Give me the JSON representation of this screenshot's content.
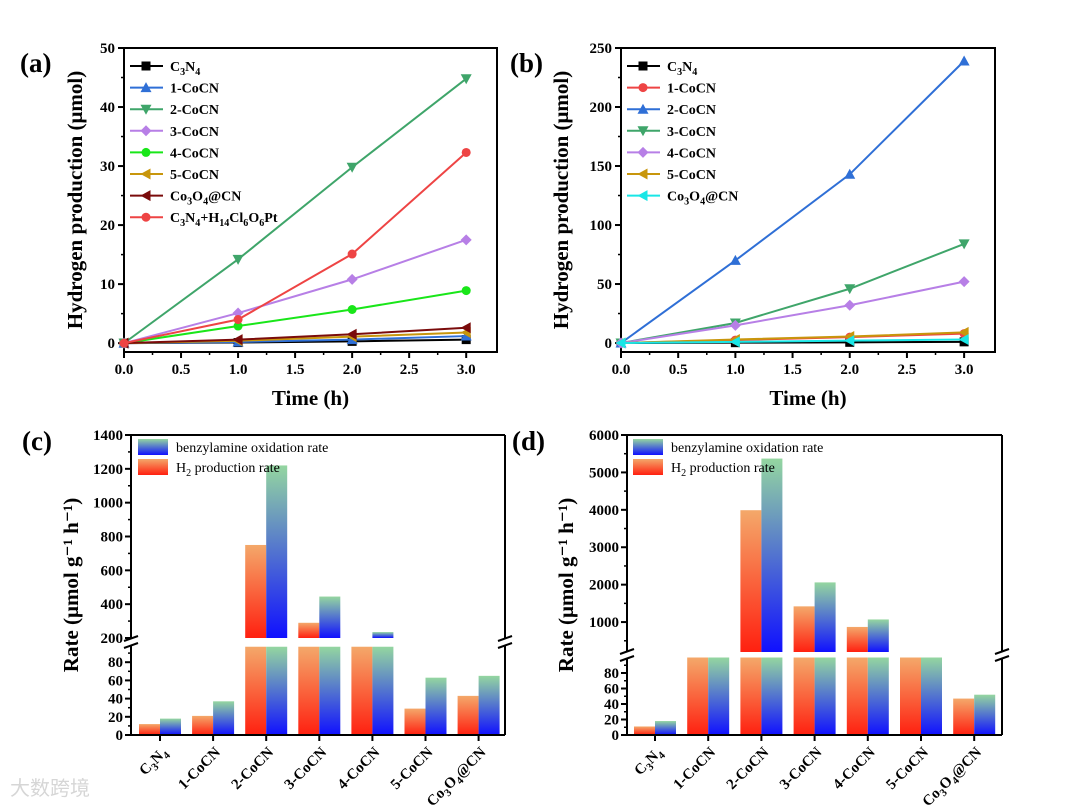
{
  "watermark": "大数跨境",
  "chart_data": [
    {
      "panel": "(a)",
      "type": "line",
      "xlabel": "Time (h)",
      "ylabel": "Hydrogen production (μmol)",
      "xlim": [
        0,
        3.27
      ],
      "ylim": [
        -1.5,
        50
      ],
      "xticks": [
        "0.0",
        "0.5",
        "1.0",
        "1.5",
        "2.0",
        "2.5",
        "3.0"
      ],
      "yticks": [
        "0",
        "10",
        "20",
        "30",
        "40",
        "50"
      ],
      "legend": "top-left",
      "x": [
        0,
        1,
        2,
        3
      ],
      "series": [
        {
          "name": "C3N4",
          "color": "#000000",
          "marker": "square",
          "values": [
            0,
            0.1,
            0.3,
            0.6
          ]
        },
        {
          "name": "1-CoCN",
          "color": "#2f6fd6",
          "marker": "triangle-up",
          "values": [
            0,
            0.2,
            0.6,
            1.2
          ]
        },
        {
          "name": "2-CoCN",
          "color": "#3fa56a",
          "marker": "triangle-down",
          "values": [
            0,
            14.2,
            29.8,
            44.8
          ]
        },
        {
          "name": "3-CoCN",
          "color": "#b77fe6",
          "marker": "diamond",
          "values": [
            0,
            5.1,
            10.8,
            17.5
          ]
        },
        {
          "name": "4-CoCN",
          "color": "#19e619",
          "marker": "circle",
          "values": [
            0,
            2.9,
            5.7,
            8.9
          ]
        },
        {
          "name": "5-CoCN",
          "color": "#c8960c",
          "marker": "triangle-left",
          "values": [
            0,
            0.4,
            1.1,
            1.8
          ]
        },
        {
          "name": "Co3O4@CN",
          "color": "#7a0b0b",
          "marker": "triangle-left",
          "values": [
            0,
            0.6,
            1.5,
            2.6
          ]
        },
        {
          "name": "C3N4+H14Cl6O6Pt",
          "color": "#ee4444",
          "marker": "circle",
          "values": [
            0,
            4.0,
            15.1,
            32.3
          ]
        }
      ]
    },
    {
      "panel": "(b)",
      "type": "line",
      "xlabel": "Time (h)",
      "ylabel": "Hydrogen production (μmol)",
      "xlim": [
        0,
        3.27
      ],
      "ylim": [
        -7.6,
        250
      ],
      "xticks": [
        "0.0",
        "0.5",
        "1.0",
        "1.5",
        "2.0",
        "2.5",
        "3.0"
      ],
      "yticks": [
        "0",
        "50",
        "100",
        "150",
        "200",
        "250"
      ],
      "legend": "top-left",
      "x": [
        0,
        1,
        2,
        3
      ],
      "series": [
        {
          "name": "C3N4",
          "color": "#000000",
          "marker": "square",
          "values": [
            0,
            0.3,
            0.6,
            1.0
          ]
        },
        {
          "name": "1-CoCN",
          "color": "#ee4444",
          "marker": "circle",
          "values": [
            0,
            2.5,
            5.0,
            8.0
          ]
        },
        {
          "name": "2-CoCN",
          "color": "#2f6fd6",
          "marker": "triangle-up",
          "values": [
            0,
            70,
            143,
            239
          ]
        },
        {
          "name": "3-CoCN",
          "color": "#3fa56a",
          "marker": "triangle-down",
          "values": [
            0,
            17,
            46,
            84
          ]
        },
        {
          "name": "4-CoCN",
          "color": "#b77fe6",
          "marker": "diamond",
          "values": [
            0,
            15,
            32,
            52
          ]
        },
        {
          "name": "5-CoCN",
          "color": "#c8960c",
          "marker": "triangle-left",
          "values": [
            0,
            3,
            5.5,
            9
          ]
        },
        {
          "name": "Co3O4@CN",
          "color": "#19e6e6",
          "marker": "triangle-left",
          "values": [
            0,
            1,
            2,
            3
          ]
        }
      ]
    },
    {
      "panel": "(c)",
      "type": "bar",
      "ylabel": "Rate (μmol g⁻¹ h⁻¹)",
      "y_broken": true,
      "ylim_lower": [
        0,
        97
      ],
      "ylim_upper": [
        200,
        1400
      ],
      "yticks_lower": [
        "0",
        "20",
        "40",
        "60",
        "80"
      ],
      "yticks_upper": [
        "200",
        "400",
        "600",
        "800",
        "1000",
        "1200",
        "1400"
      ],
      "legend": "top-left",
      "categories": [
        "C3N4",
        "1-CoCN",
        "2-CoCN",
        "3-CoCN",
        "4-CoCN",
        "5-CoCN",
        "Co3O4@CN"
      ],
      "series": [
        {
          "name": "H2 production rate",
          "colors": [
            "#f4a86a",
            "#ff2010"
          ],
          "values": [
            12,
            21,
            750,
            290,
            180,
            29,
            43
          ]
        },
        {
          "name": "benzylamine oxidation rate",
          "colors": [
            "#94d6a0",
            "#1010ff"
          ],
          "values": [
            18,
            37,
            1220,
            445,
            235,
            63,
            65
          ]
        }
      ],
      "legend_order": [
        1,
        0
      ]
    },
    {
      "panel": "(d)",
      "type": "bar",
      "ylabel": "Rate (μmol g⁻¹ h⁻¹)",
      "y_broken": true,
      "ylim_lower": [
        0,
        100
      ],
      "ylim_upper": [
        200,
        6000
      ],
      "yticks_lower": [
        "0",
        "20",
        "40",
        "60",
        "80"
      ],
      "yticks_upper": [
        "1000",
        "2000",
        "3000",
        "4000",
        "5000",
        "6000"
      ],
      "legend": "top-left",
      "categories": [
        "C3N4",
        "1-CoCN",
        "2-CoCN",
        "3-CoCN",
        "4-CoCN",
        "5-CoCN",
        "Co3O4@CN"
      ],
      "series": [
        {
          "name": "H2 production rate",
          "colors": [
            "#f4a86a",
            "#ff2010"
          ],
          "values": [
            11,
            150,
            3990,
            1420,
            870,
            170,
            47
          ]
        },
        {
          "name": "benzylamine oxidation rate",
          "colors": [
            "#94d6a0",
            "#1010ff"
          ],
          "values": [
            18,
            160,
            5370,
            2060,
            1070,
            180,
            52
          ]
        }
      ],
      "legend_order": [
        1,
        0
      ]
    }
  ]
}
